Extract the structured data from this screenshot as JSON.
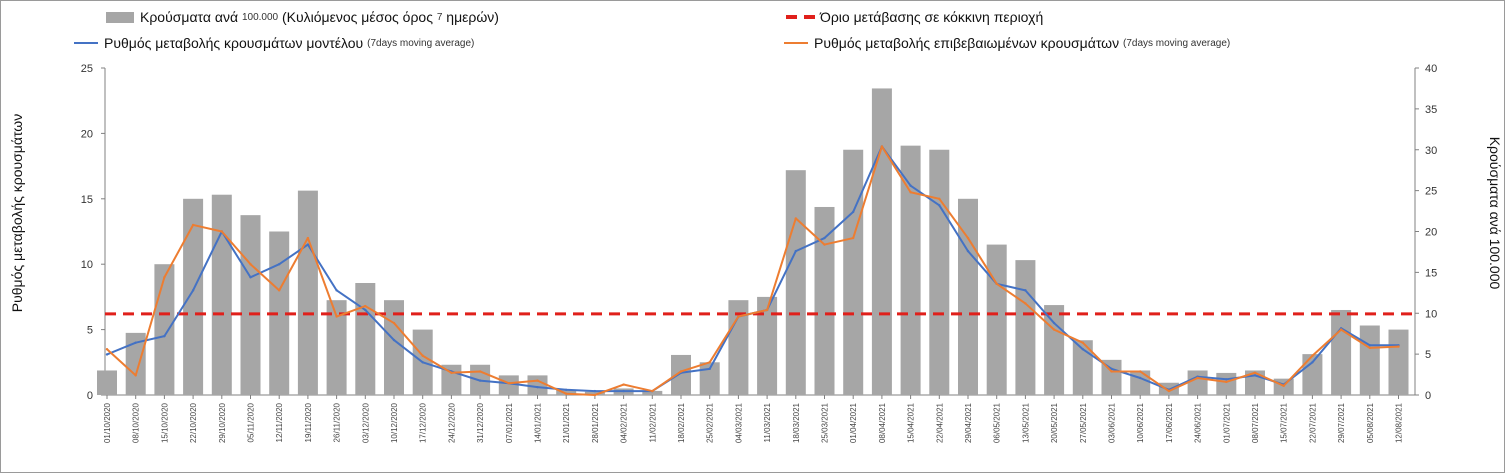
{
  "legend": {
    "bars_main": "Κρούσματα ανά",
    "bars_small1": "100.000",
    "bars_mid": "(Κυλιόμενος μέσος όρος",
    "bars_small2": "7",
    "bars_end": "ημερών)",
    "threshold": "Όριο μετάβασης σε κόκκινη περιοχή",
    "model_main": "Ρυθμός μεταβολής κρουσμάτων μοντέλου",
    "model_small": "(7days moving average)",
    "confirmed_main": "Ρυθμός μεταβολής επιβεβαιωμένων κρουσμάτων",
    "confirmed_small": "(7days moving average)"
  },
  "colors": {
    "bars": "#a6a6a6",
    "model": "#4472c4",
    "confirmed": "#ed7d31",
    "threshold": "#e0201b"
  },
  "chart_data": {
    "type": "bar+line",
    "ylabel_left": "Ρυθμός μεταβολής κρουσμάτων",
    "ylabel_right": "Κρούσματα ανά 100.000",
    "ylim_left": [
      0,
      25
    ],
    "ylim_right": [
      0,
      40
    ],
    "yticks_left": [
      "0",
      "5",
      "10",
      "15",
      "20",
      "25"
    ],
    "yticks_right": [
      "0",
      "5",
      "10",
      "15",
      "20",
      "25",
      "30",
      "35",
      "40"
    ],
    "threshold": 6.2,
    "categories": [
      "01/10/2020",
      "08/10/2020",
      "15/10/2020",
      "22/10/2020",
      "29/10/2020",
      "05/11/2020",
      "12/11/2020",
      "19/11/2020",
      "26/11/2020",
      "03/12/2020",
      "10/12/2020",
      "17/12/2020",
      "24/12/2020",
      "31/12/2020",
      "07/01/2021",
      "14/01/2021",
      "21/01/2021",
      "28/01/2021",
      "04/02/2021",
      "11/02/2021",
      "18/02/2021",
      "25/02/2021",
      "04/03/2021",
      "11/03/2021",
      "18/03/2021",
      "25/03/2021",
      "01/04/2021",
      "08/04/2021",
      "15/04/2021",
      "22/04/2021",
      "29/04/2021",
      "06/05/2021",
      "13/05/2021",
      "20/05/2021",
      "27/05/2021",
      "03/06/2021",
      "10/06/2021",
      "17/06/2021",
      "24/06/2021",
      "01/07/2021",
      "08/07/2021",
      "15/07/2021",
      "22/07/2021",
      "29/07/2021",
      "05/08/2021",
      "12/08/2021"
    ],
    "series": [
      {
        "name": "Κρούσματα ανά 100.000 (7-day avg)",
        "axis": "right",
        "type": "bar",
        "values": [
          3,
          7.6,
          16,
          24,
          24.5,
          22,
          20,
          25,
          11.6,
          13.7,
          11.6,
          8,
          3.7,
          3.7,
          2.4,
          2.4,
          0.6,
          0.4,
          0.8,
          0.5,
          4.9,
          4,
          11.6,
          12,
          27.5,
          23,
          30,
          37.5,
          30.5,
          30,
          24,
          18.4,
          16.5,
          11,
          6.7,
          4.3,
          3,
          1.5,
          3,
          2.7,
          3,
          2,
          5,
          10.4,
          8.5,
          8
        ]
      },
      {
        "name": "Ρυθμός μεταβολής κρουσμάτων μοντέλου",
        "axis": "left",
        "type": "line",
        "values": [
          3.1,
          4,
          4.5,
          8,
          12.5,
          9,
          10,
          11.5,
          8,
          6.5,
          4.2,
          2.5,
          1.8,
          1.1,
          0.9,
          0.6,
          0.4,
          0.3,
          0.3,
          0.3,
          1.7,
          2,
          6,
          6.5,
          11,
          12,
          14,
          19,
          16,
          14.5,
          11,
          8.5,
          8,
          5.5,
          3.5,
          2,
          1.3,
          0.4,
          1.4,
          1.2,
          1.5,
          0.8,
          2.5,
          5.1,
          3.8,
          3.8
        ]
      },
      {
        "name": "Ρυθμός μεταβολής επιβεβαιωμένων κρουσμάτων",
        "axis": "left",
        "type": "line",
        "values": [
          3.5,
          1.5,
          9,
          13,
          12.5,
          10,
          8,
          12,
          6,
          6.8,
          5.5,
          3,
          1.7,
          1.8,
          0.9,
          1.1,
          0.1,
          0,
          0.8,
          0.3,
          1.8,
          2.5,
          6,
          6.5,
          13.5,
          11.5,
          12,
          19,
          15.5,
          15,
          12,
          8.5,
          7,
          5,
          4,
          1.8,
          1.8,
          0.3,
          1.3,
          1,
          1.7,
          0.7,
          3,
          5,
          3.6,
          3.7
        ]
      }
    ]
  }
}
